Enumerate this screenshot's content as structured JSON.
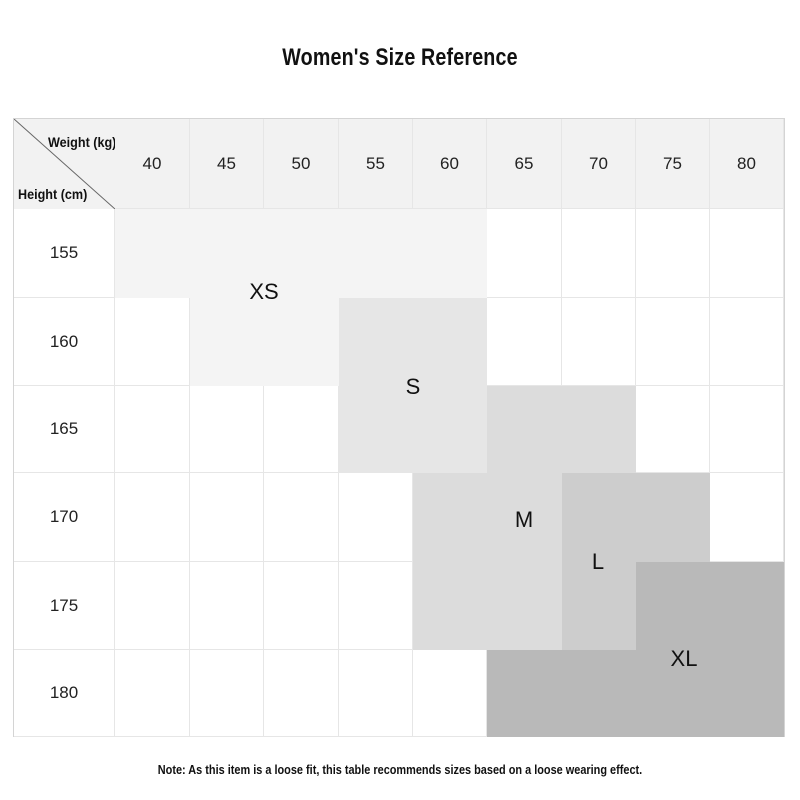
{
  "title": "Women's Size Reference",
  "corner": {
    "weight_label": "Weight (kg)",
    "height_label": "Height (cm)"
  },
  "weights": [
    "40",
    "45",
    "50",
    "55",
    "60",
    "65",
    "70",
    "75",
    "80"
  ],
  "heights": [
    "155",
    "160",
    "165",
    "170",
    "175",
    "180"
  ],
  "sizes": {
    "xs": {
      "label": "XS",
      "color": "#f4f4f4"
    },
    "s": {
      "label": "S",
      "color": "#e6e6e6"
    },
    "m": {
      "label": "M",
      "color": "#dcdcdc"
    },
    "l": {
      "label": "L",
      "color": "#cdcdcd"
    },
    "xl": {
      "label": "XL",
      "color": "#b9b9b9"
    }
  },
  "note": "Note: As this item is a loose fit, this table recommends sizes based on a loose wearing effect.",
  "chart_data": {
    "type": "table",
    "title": "Women's Size Reference",
    "x_axis": "Weight (kg)",
    "y_axis": "Height (cm)",
    "columns": [
      40,
      45,
      50,
      55,
      60,
      65,
      70,
      75,
      80
    ],
    "rows": [
      155,
      160,
      165,
      170,
      175,
      180
    ],
    "cells": [
      [
        "XS",
        "XS",
        "XS",
        "XS",
        "XS",
        "",
        "",
        "",
        ""
      ],
      [
        "",
        "XS",
        "XS",
        "S",
        "S",
        "",
        "",
        "",
        ""
      ],
      [
        "",
        "",
        "",
        "S",
        "S",
        "M",
        "M",
        "",
        ""
      ],
      [
        "",
        "",
        "",
        "",
        "M",
        "M",
        "L",
        "L",
        ""
      ],
      [
        "",
        "",
        "",
        "",
        "M",
        "M",
        "L",
        "XL",
        "XL"
      ],
      [
        "",
        "",
        "",
        "",
        "",
        "XL",
        "XL",
        "XL",
        "XL"
      ]
    ]
  }
}
